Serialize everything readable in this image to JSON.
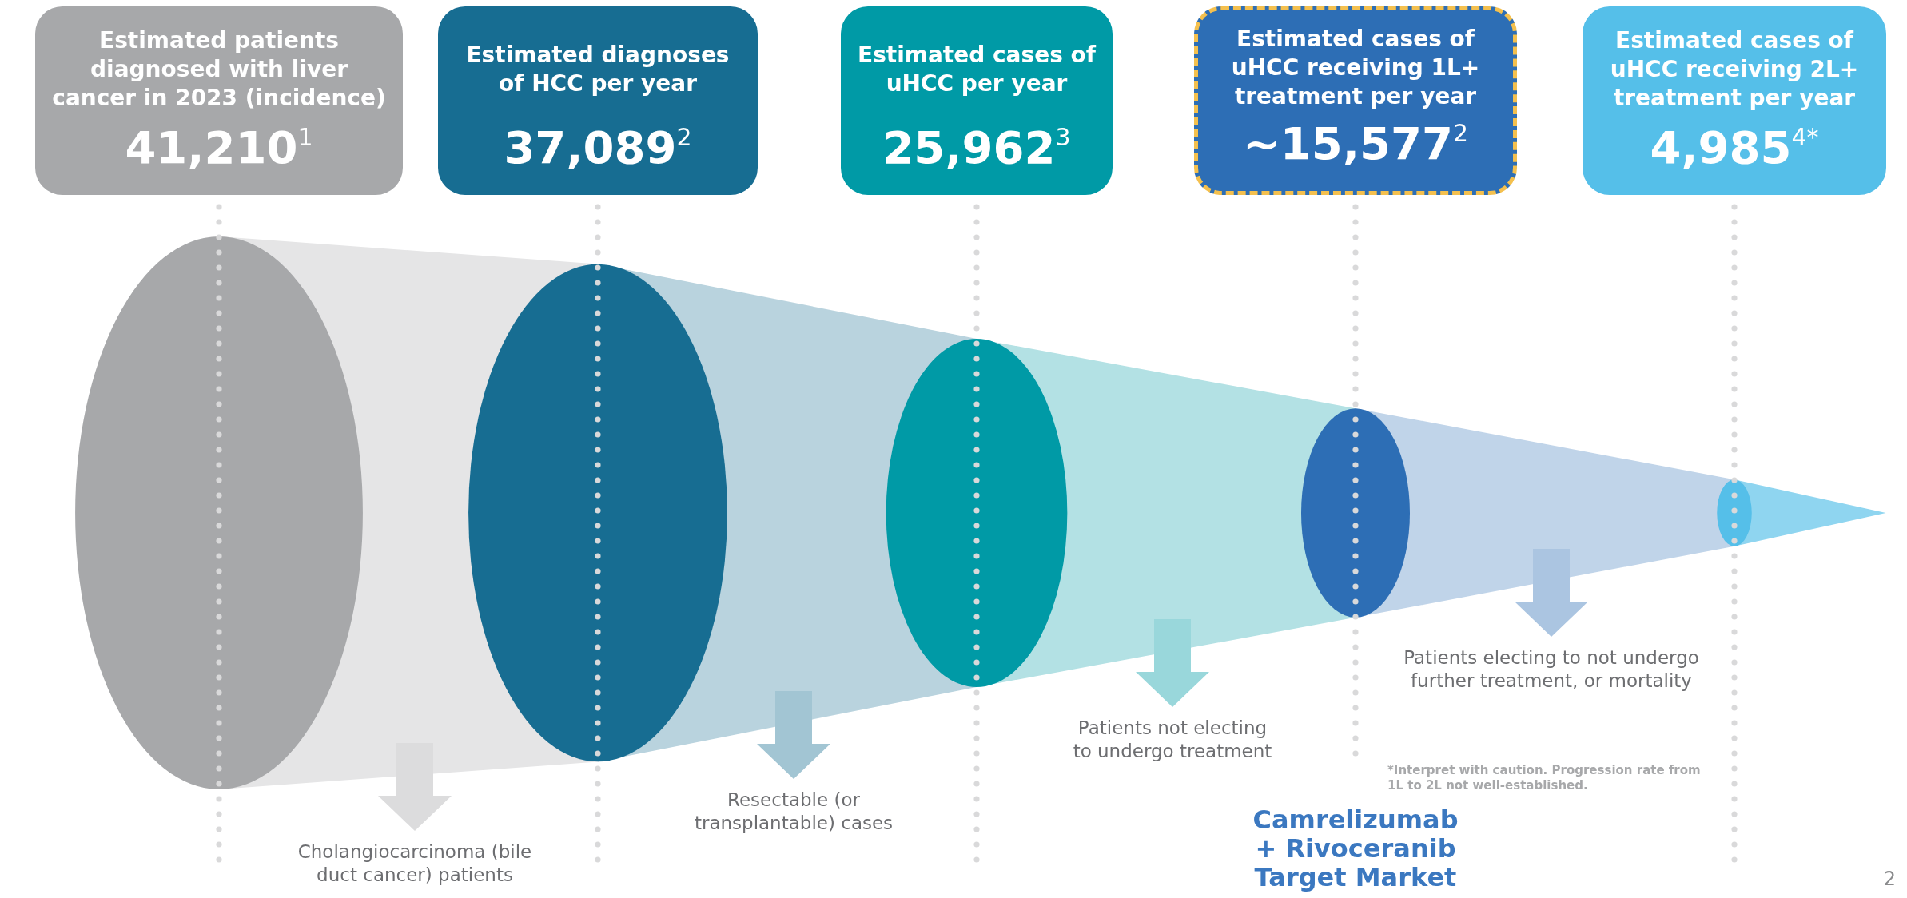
{
  "chart_data": {
    "type": "other",
    "categories": [
      "Estimated patients diagnosed with liver cancer in 2023 (incidence)",
      "Estimated diagnoses of HCC per year",
      "Estimated cases of uHCC per year",
      "Estimated cases of uHCC receiving 1L+ treatment per year",
      "Estimated cases of uHCC receiving 2L+ treatment per year"
    ],
    "values": [
      41210,
      37089,
      25962,
      15577,
      4985
    ],
    "value_labels": [
      "41,210$^{1}$",
      "37,089$^{2}$",
      "25,962$^{3}$",
      "~15,577$^{2}$",
      "4,985$^{4*}$"
    ],
    "colors": [
      "#a7a8aa",
      "#176d92",
      "#009aa6",
      "#2d6eb5",
      "#55bfe9"
    ],
    "annotations": [
      "Cholangiocarcinoma (bile duct cancer) patients",
      "Resectable (or transplantable) cases",
      "Patients not electing to undergo treatment",
      "Patients electing to not undergo further treatment, or mortality",
      "*Interpret with caution. Progression rate from 1L to 2L not well-established.",
      {
        "text": "Camrelizumab + Rivoceranib Target Market",
        "x": "Estimated cases of uHCC receiving 1L+ treatment per year"
      },
      "2"
    ]
  }
}
